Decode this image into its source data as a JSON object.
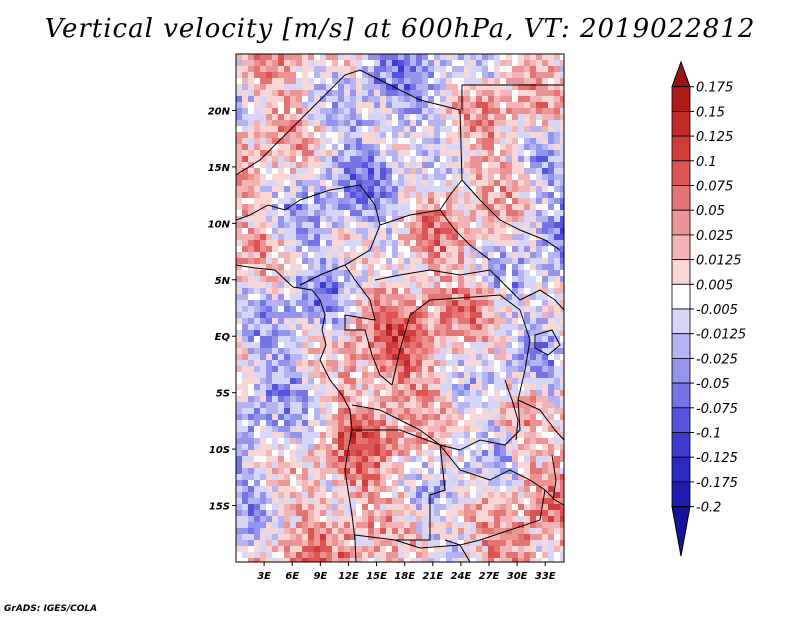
{
  "title": "Vertical velocity [m/s] at 600hPa, VT: 2019022812",
  "credit": "GrADS: IGES/COLA",
  "map": {
    "lon_range": [
      0,
      35
    ],
    "lat_range": [
      -20,
      25
    ],
    "x_ticks": [
      "3E",
      "6E",
      "9E",
      "12E",
      "15E",
      "18E",
      "21E",
      "24E",
      "27E",
      "30E",
      "33E"
    ],
    "x_tick_values": [
      3,
      6,
      9,
      12,
      15,
      18,
      21,
      24,
      27,
      30,
      33
    ],
    "y_ticks": [
      "20N",
      "15N",
      "10N",
      "5N",
      "EQ",
      "5S",
      "10S",
      "15S"
    ],
    "y_tick_values": [
      20,
      15,
      10,
      5,
      0,
      -5,
      -10,
      -15
    ]
  },
  "colorbar": {
    "labels": [
      "0.175",
      "0.15",
      "0.125",
      "0.1",
      "0.075",
      "0.05",
      "0.025",
      "0.0125",
      "0.005",
      "-0.005",
      "-0.0125",
      "-0.025",
      "-0.05",
      "-0.075",
      "-0.1",
      "-0.125",
      "-0.175",
      "-0.2"
    ],
    "colors": [
      "#9b1414",
      "#b01c1c",
      "#c22a2a",
      "#d03c3c",
      "#dc5454",
      "#e47474",
      "#ec9494",
      "#f2b4b4",
      "#f8d6d6",
      "#ffffff",
      "#d6d6f8",
      "#b4b4f2",
      "#9494ec",
      "#7474e4",
      "#5454dc",
      "#3c3cd0",
      "#2a2ac2",
      "#1c1cb0",
      "#14149b"
    ]
  }
}
